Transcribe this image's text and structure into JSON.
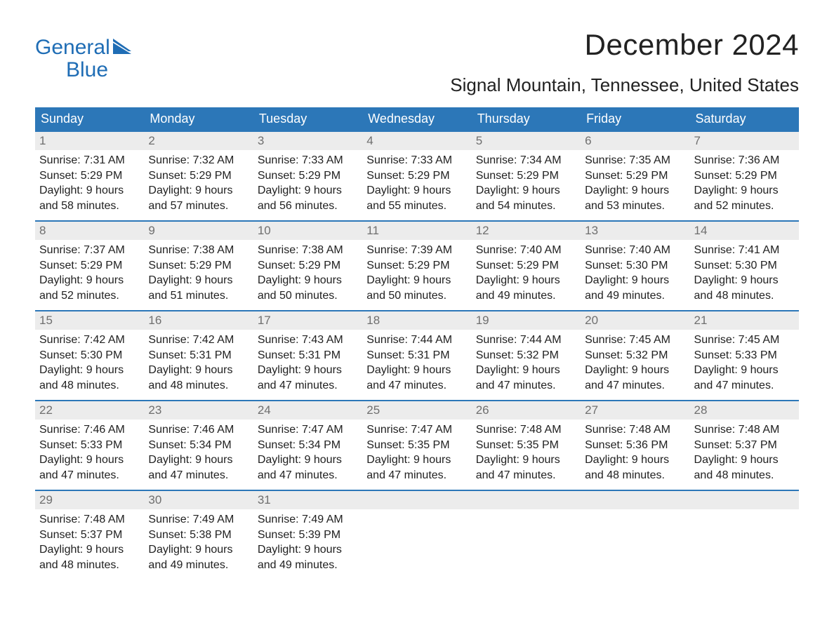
{
  "brand": {
    "line1": "General",
    "line2": "Blue",
    "accent_color": "#1f6db5"
  },
  "title": "December 2024",
  "location": "Signal Mountain, Tennessee, United States",
  "colors": {
    "header_bg": "#2c77b8",
    "header_text": "#ffffff",
    "daynum_bg": "#ececec",
    "daynum_border": "#2c77b8",
    "daynum_text": "#6f6f6f",
    "body_text": "#212121",
    "page_bg": "#ffffff"
  },
  "typography": {
    "title_pt": 42,
    "location_pt": 26,
    "header_pt": 18,
    "body_pt": 16
  },
  "weekdays": [
    "Sunday",
    "Monday",
    "Tuesday",
    "Wednesday",
    "Thursday",
    "Friday",
    "Saturday"
  ],
  "weeks": [
    [
      {
        "n": "1",
        "sunrise": "Sunrise: 7:31 AM",
        "sunset": "Sunset: 5:29 PM",
        "d1": "Daylight: 9 hours",
        "d2": "and 58 minutes."
      },
      {
        "n": "2",
        "sunrise": "Sunrise: 7:32 AM",
        "sunset": "Sunset: 5:29 PM",
        "d1": "Daylight: 9 hours",
        "d2": "and 57 minutes."
      },
      {
        "n": "3",
        "sunrise": "Sunrise: 7:33 AM",
        "sunset": "Sunset: 5:29 PM",
        "d1": "Daylight: 9 hours",
        "d2": "and 56 minutes."
      },
      {
        "n": "4",
        "sunrise": "Sunrise: 7:33 AM",
        "sunset": "Sunset: 5:29 PM",
        "d1": "Daylight: 9 hours",
        "d2": "and 55 minutes."
      },
      {
        "n": "5",
        "sunrise": "Sunrise: 7:34 AM",
        "sunset": "Sunset: 5:29 PM",
        "d1": "Daylight: 9 hours",
        "d2": "and 54 minutes."
      },
      {
        "n": "6",
        "sunrise": "Sunrise: 7:35 AM",
        "sunset": "Sunset: 5:29 PM",
        "d1": "Daylight: 9 hours",
        "d2": "and 53 minutes."
      },
      {
        "n": "7",
        "sunrise": "Sunrise: 7:36 AM",
        "sunset": "Sunset: 5:29 PM",
        "d1": "Daylight: 9 hours",
        "d2": "and 52 minutes."
      }
    ],
    [
      {
        "n": "8",
        "sunrise": "Sunrise: 7:37 AM",
        "sunset": "Sunset: 5:29 PM",
        "d1": "Daylight: 9 hours",
        "d2": "and 52 minutes."
      },
      {
        "n": "9",
        "sunrise": "Sunrise: 7:38 AM",
        "sunset": "Sunset: 5:29 PM",
        "d1": "Daylight: 9 hours",
        "d2": "and 51 minutes."
      },
      {
        "n": "10",
        "sunrise": "Sunrise: 7:38 AM",
        "sunset": "Sunset: 5:29 PM",
        "d1": "Daylight: 9 hours",
        "d2": "and 50 minutes."
      },
      {
        "n": "11",
        "sunrise": "Sunrise: 7:39 AM",
        "sunset": "Sunset: 5:29 PM",
        "d1": "Daylight: 9 hours",
        "d2": "and 50 minutes."
      },
      {
        "n": "12",
        "sunrise": "Sunrise: 7:40 AM",
        "sunset": "Sunset: 5:29 PM",
        "d1": "Daylight: 9 hours",
        "d2": "and 49 minutes."
      },
      {
        "n": "13",
        "sunrise": "Sunrise: 7:40 AM",
        "sunset": "Sunset: 5:30 PM",
        "d1": "Daylight: 9 hours",
        "d2": "and 49 minutes."
      },
      {
        "n": "14",
        "sunrise": "Sunrise: 7:41 AM",
        "sunset": "Sunset: 5:30 PM",
        "d1": "Daylight: 9 hours",
        "d2": "and 48 minutes."
      }
    ],
    [
      {
        "n": "15",
        "sunrise": "Sunrise: 7:42 AM",
        "sunset": "Sunset: 5:30 PM",
        "d1": "Daylight: 9 hours",
        "d2": "and 48 minutes."
      },
      {
        "n": "16",
        "sunrise": "Sunrise: 7:42 AM",
        "sunset": "Sunset: 5:31 PM",
        "d1": "Daylight: 9 hours",
        "d2": "and 48 minutes."
      },
      {
        "n": "17",
        "sunrise": "Sunrise: 7:43 AM",
        "sunset": "Sunset: 5:31 PM",
        "d1": "Daylight: 9 hours",
        "d2": "and 47 minutes."
      },
      {
        "n": "18",
        "sunrise": "Sunrise: 7:44 AM",
        "sunset": "Sunset: 5:31 PM",
        "d1": "Daylight: 9 hours",
        "d2": "and 47 minutes."
      },
      {
        "n": "19",
        "sunrise": "Sunrise: 7:44 AM",
        "sunset": "Sunset: 5:32 PM",
        "d1": "Daylight: 9 hours",
        "d2": "and 47 minutes."
      },
      {
        "n": "20",
        "sunrise": "Sunrise: 7:45 AM",
        "sunset": "Sunset: 5:32 PM",
        "d1": "Daylight: 9 hours",
        "d2": "and 47 minutes."
      },
      {
        "n": "21",
        "sunrise": "Sunrise: 7:45 AM",
        "sunset": "Sunset: 5:33 PM",
        "d1": "Daylight: 9 hours",
        "d2": "and 47 minutes."
      }
    ],
    [
      {
        "n": "22",
        "sunrise": "Sunrise: 7:46 AM",
        "sunset": "Sunset: 5:33 PM",
        "d1": "Daylight: 9 hours",
        "d2": "and 47 minutes."
      },
      {
        "n": "23",
        "sunrise": "Sunrise: 7:46 AM",
        "sunset": "Sunset: 5:34 PM",
        "d1": "Daylight: 9 hours",
        "d2": "and 47 minutes."
      },
      {
        "n": "24",
        "sunrise": "Sunrise: 7:47 AM",
        "sunset": "Sunset: 5:34 PM",
        "d1": "Daylight: 9 hours",
        "d2": "and 47 minutes."
      },
      {
        "n": "25",
        "sunrise": "Sunrise: 7:47 AM",
        "sunset": "Sunset: 5:35 PM",
        "d1": "Daylight: 9 hours",
        "d2": "and 47 minutes."
      },
      {
        "n": "26",
        "sunrise": "Sunrise: 7:48 AM",
        "sunset": "Sunset: 5:35 PM",
        "d1": "Daylight: 9 hours",
        "d2": "and 47 minutes."
      },
      {
        "n": "27",
        "sunrise": "Sunrise: 7:48 AM",
        "sunset": "Sunset: 5:36 PM",
        "d1": "Daylight: 9 hours",
        "d2": "and 48 minutes."
      },
      {
        "n": "28",
        "sunrise": "Sunrise: 7:48 AM",
        "sunset": "Sunset: 5:37 PM",
        "d1": "Daylight: 9 hours",
        "d2": "and 48 minutes."
      }
    ],
    [
      {
        "n": "29",
        "sunrise": "Sunrise: 7:48 AM",
        "sunset": "Sunset: 5:37 PM",
        "d1": "Daylight: 9 hours",
        "d2": "and 48 minutes."
      },
      {
        "n": "30",
        "sunrise": "Sunrise: 7:49 AM",
        "sunset": "Sunset: 5:38 PM",
        "d1": "Daylight: 9 hours",
        "d2": "and 49 minutes."
      },
      {
        "n": "31",
        "sunrise": "Sunrise: 7:49 AM",
        "sunset": "Sunset: 5:39 PM",
        "d1": "Daylight: 9 hours",
        "d2": "and 49 minutes."
      },
      {
        "empty": true
      },
      {
        "empty": true
      },
      {
        "empty": true
      },
      {
        "empty": true
      }
    ]
  ]
}
